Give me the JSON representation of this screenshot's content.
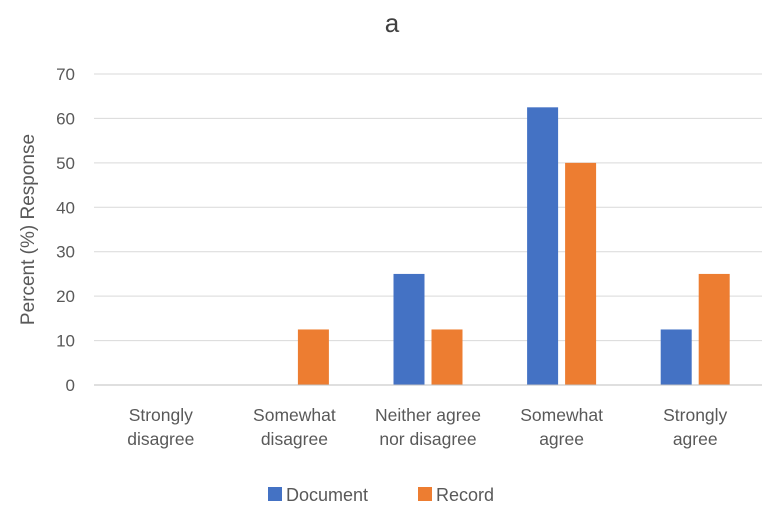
{
  "chart_data": {
    "type": "bar",
    "title": "a",
    "xlabel": "",
    "ylabel": "Percent (%) Response",
    "ylim": [
      0,
      70
    ],
    "yticks": [
      0,
      10,
      20,
      30,
      40,
      50,
      60,
      70
    ],
    "categories": [
      [
        "Strongly",
        "disagree"
      ],
      [
        "Somewhat",
        "disagree"
      ],
      [
        "Neither agree",
        "nor disagree"
      ],
      [
        "Somewhat",
        "agree"
      ],
      [
        "Strongly",
        "agree"
      ]
    ],
    "series": [
      {
        "name": "Document",
        "color": "#4472C4",
        "values": [
          0,
          0,
          25,
          62.5,
          12.5
        ]
      },
      {
        "name": "Record",
        "color": "#ED7D31",
        "values": [
          0,
          12.5,
          12.5,
          50,
          25
        ]
      }
    ],
    "grid": true,
    "legend_position": "bottom"
  }
}
